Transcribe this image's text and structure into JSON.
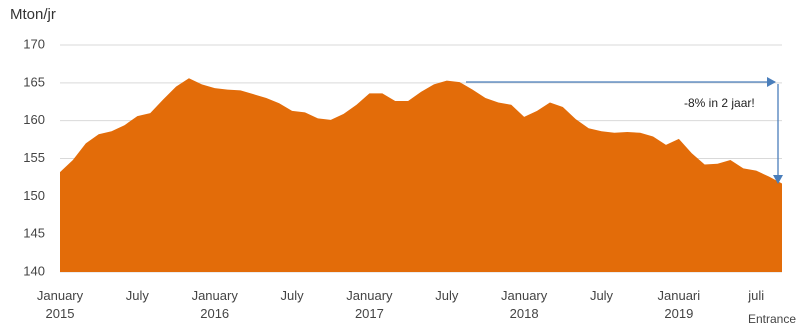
{
  "chart_data": {
    "type": "area",
    "y_label": "Mton/jr",
    "annotation": "-8% in 2 jaar!",
    "source": "Entrance",
    "color": "#e36c09",
    "grid": true,
    "ylim": [
      140,
      170
    ],
    "yticks": [
      140,
      145,
      150,
      155,
      160,
      165,
      170
    ],
    "categories": [
      "January\n2015",
      null,
      null,
      null,
      null,
      null,
      "July",
      null,
      null,
      null,
      null,
      null,
      "January\n2016",
      null,
      null,
      null,
      null,
      null,
      "July",
      null,
      null,
      null,
      null,
      null,
      "January\n2017",
      null,
      null,
      null,
      null,
      null,
      "July",
      null,
      null,
      null,
      null,
      null,
      "January\n2018",
      null,
      null,
      null,
      null,
      null,
      "July",
      null,
      null,
      null,
      null,
      null,
      "Januari\n2019",
      null,
      null,
      null,
      null,
      null,
      "juli",
      null,
      null
    ],
    "values": [
      153.2,
      154.8,
      157,
      158.2,
      158.6,
      159.4,
      160.6,
      161,
      162.8,
      164.5,
      165.6,
      164.8,
      164.3,
      164.1,
      164,
      163.5,
      163,
      162.3,
      161.3,
      161.1,
      160.3,
      160.1,
      160.9,
      162.1,
      163.6,
      163.6,
      162.6,
      162.6,
      163.8,
      164.8,
      165.3,
      165.1,
      164.1,
      163,
      162.4,
      162.1,
      160.5,
      161.3,
      162.4,
      161.8,
      160.2,
      159,
      158.6,
      158.4,
      158.5,
      158.4,
      157.9,
      156.8,
      157.6,
      155.7,
      154.2,
      154.3,
      154.8,
      153.7,
      153.4,
      152.6,
      151.7
    ]
  }
}
